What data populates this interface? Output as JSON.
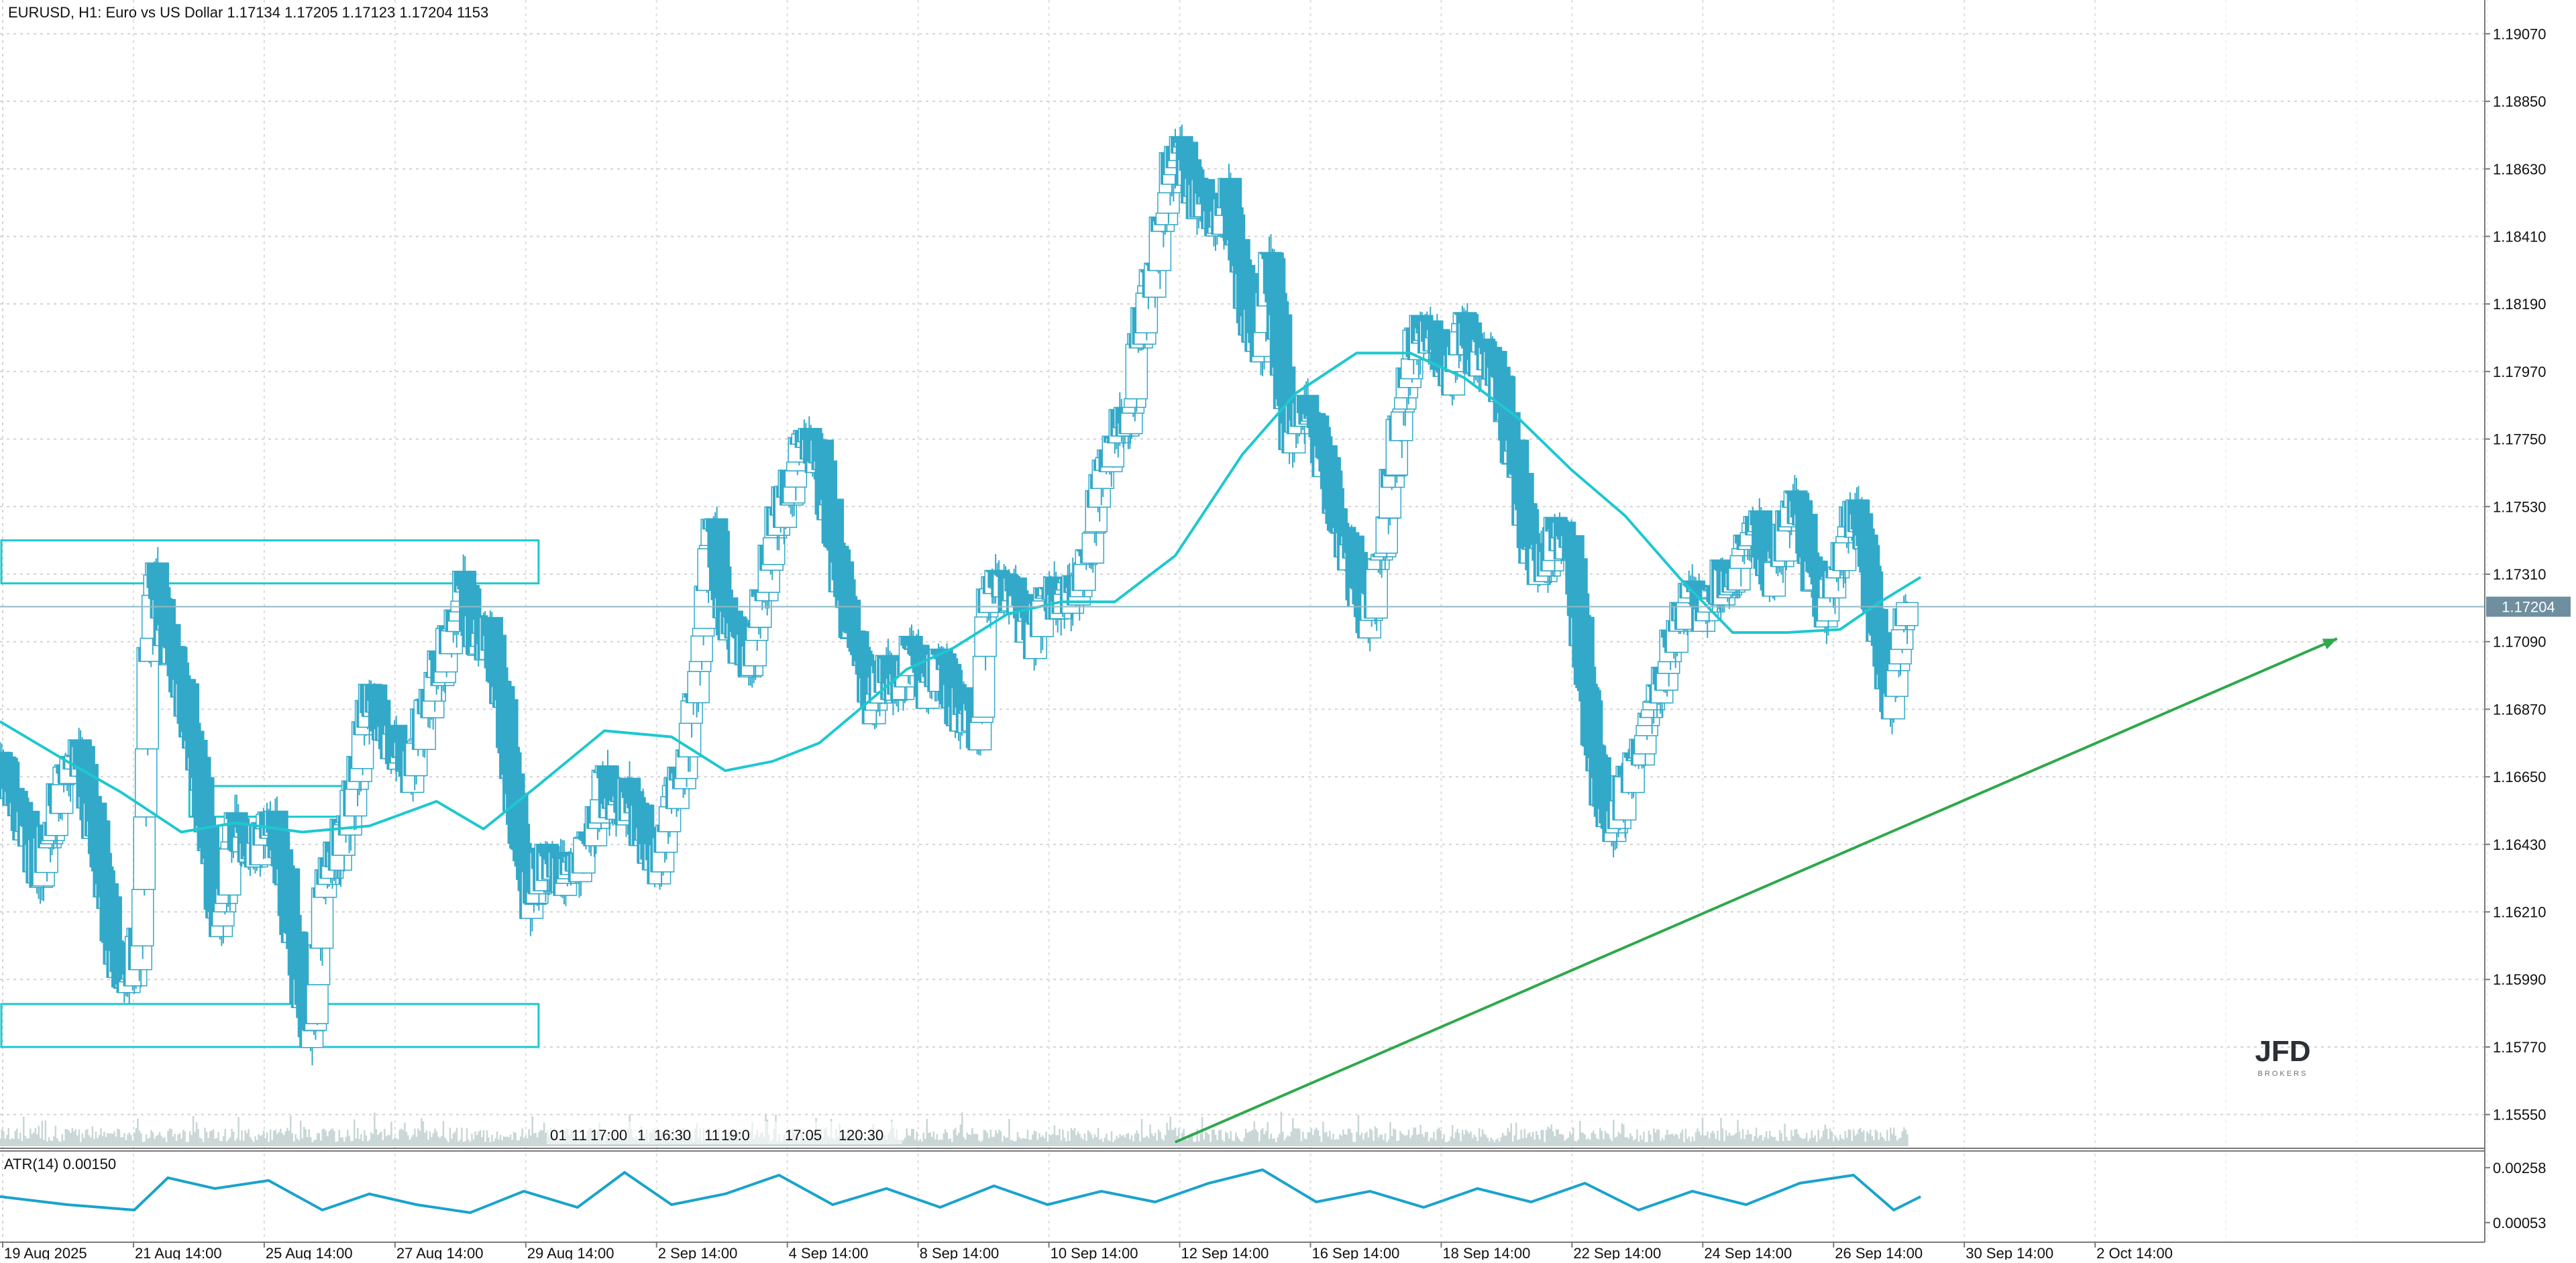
{
  "header": {
    "symbol_line": "EURUSD, H1:  Euro vs US Dollar  1.17134 1.17205 1.17123 1.17204  1153"
  },
  "price_panel": {
    "y_ticks": [
      "1.19070",
      "1.18850",
      "1.18630",
      "1.18410",
      "1.18190",
      "1.17970",
      "1.17750",
      "1.17530",
      "1.17310",
      "1.17090",
      "1.16870",
      "1.16650",
      "1.16430",
      "1.16210",
      "1.15990",
      "1.15770",
      "1.15550"
    ],
    "current_price_label": "1.17204",
    "watermark_main": "JFD",
    "watermark_sub": "BROKERS"
  },
  "atr_panel": {
    "label": "ATR(14) 0.00150",
    "y_ticks": [
      "0.00258",
      "0.00053"
    ]
  },
  "x_axis": {
    "labels": [
      "19 Aug 2025",
      "21 Aug 14:00",
      "25 Aug 14:00",
      "27 Aug 14:00",
      "29 Aug 14:00",
      "2 Sep 14:00",
      "4 Sep 14:00",
      "8 Sep 14:00",
      "10 Sep 14:00",
      "12 Sep 14:00",
      "16 Sep 14:00",
      "18 Sep 14:00",
      "22 Sep 14:00",
      "24 Sep 14:00",
      "26 Sep 14:00",
      "30 Sep 14:00",
      "2 Oct 14:00"
    ]
  },
  "overlapping_time_labels": [
    "01",
    "11",
    "17:00",
    "1",
    "16:30",
    "11",
    "19:0",
    "17:05",
    "1",
    "20:30"
  ],
  "colors": {
    "candle": "#33a9c9",
    "moving_average": "#1ec8cf",
    "zone_border": "#1ec8cf",
    "trendline": "#2ea84c",
    "atr_line": "#1aa3cc",
    "volume": "#c9d6d6",
    "grid": "#d3d3d3",
    "current_price_bg": "#6f8ea0"
  },
  "chart_data": {
    "type": "candlestick",
    "symbol": "EURUSD",
    "timeframe": "H1",
    "ohlc_last": {
      "open": 1.17134,
      "high": 1.17205,
      "low": 1.17123,
      "close": 1.17204
    },
    "last_volume": 1153,
    "ylim": [
      1.1544,
      1.1918
    ],
    "close_path": [
      {
        "t": 0,
        "p": 1.1673
      },
      {
        "t": 3,
        "p": 1.1655
      },
      {
        "t": 6,
        "p": 1.1635
      },
      {
        "t": 9,
        "p": 1.166
      },
      {
        "t": 12,
        "p": 1.167
      },
      {
        "t": 15,
        "p": 1.164
      },
      {
        "t": 17,
        "p": 1.161
      },
      {
        "t": 19,
        "p": 1.1595
      },
      {
        "t": 21,
        "p": 1.1612
      },
      {
        "t": 22,
        "p": 1.17
      },
      {
        "t": 23,
        "p": 1.1733
      },
      {
        "t": 25,
        "p": 1.171
      },
      {
        "t": 27,
        "p": 1.1695
      },
      {
        "t": 29,
        "p": 1.168
      },
      {
        "t": 31,
        "p": 1.164
      },
      {
        "t": 33,
        "p": 1.1615
      },
      {
        "t": 35,
        "p": 1.165
      },
      {
        "t": 38,
        "p": 1.164
      },
      {
        "t": 41,
        "p": 1.165
      },
      {
        "t": 43,
        "p": 1.1625
      },
      {
        "t": 45,
        "p": 1.1595
      },
      {
        "t": 46,
        "p": 1.158
      },
      {
        "t": 47,
        "p": 1.1585
      },
      {
        "t": 48,
        "p": 1.1625
      },
      {
        "t": 50,
        "p": 1.164
      },
      {
        "t": 52,
        "p": 1.165
      },
      {
        "t": 55,
        "p": 1.169
      },
      {
        "t": 58,
        "p": 1.168
      },
      {
        "t": 61,
        "p": 1.1665
      },
      {
        "t": 64,
        "p": 1.169
      },
      {
        "t": 67,
        "p": 1.171
      },
      {
        "t": 69,
        "p": 1.1728
      },
      {
        "t": 71,
        "p": 1.1708
      },
      {
        "t": 73,
        "p": 1.171
      },
      {
        "t": 75,
        "p": 1.169
      },
      {
        "t": 77,
        "p": 1.165
      },
      {
        "t": 79,
        "p": 1.1625
      },
      {
        "t": 82,
        "p": 1.164
      },
      {
        "t": 85,
        "p": 1.163
      },
      {
        "t": 88,
        "p": 1.1645
      },
      {
        "t": 90,
        "p": 1.1665
      },
      {
        "t": 92,
        "p": 1.165
      },
      {
        "t": 94,
        "p": 1.166
      },
      {
        "t": 96,
        "p": 1.1645
      },
      {
        "t": 98,
        "p": 1.1635
      },
      {
        "t": 100,
        "p": 1.1655
      },
      {
        "t": 102,
        "p": 1.167
      },
      {
        "t": 104,
        "p": 1.17
      },
      {
        "t": 106,
        "p": 1.175
      },
      {
        "t": 108,
        "p": 1.172
      },
      {
        "t": 110,
        "p": 1.171
      },
      {
        "t": 112,
        "p": 1.17
      },
      {
        "t": 114,
        "p": 1.173
      },
      {
        "t": 116,
        "p": 1.175
      },
      {
        "t": 118,
        "p": 1.176
      },
      {
        "t": 120,
        "p": 1.1775
      },
      {
        "t": 122,
        "p": 1.177
      },
      {
        "t": 124,
        "p": 1.1745
      },
      {
        "t": 126,
        "p": 1.172
      },
      {
        "t": 128,
        "p": 1.1705
      },
      {
        "t": 130,
        "p": 1.169
      },
      {
        "t": 132,
        "p": 1.17
      },
      {
        "t": 134,
        "p": 1.1693
      },
      {
        "t": 136,
        "p": 1.171
      },
      {
        "t": 138,
        "p": 1.1695
      },
      {
        "t": 140,
        "p": 1.17
      },
      {
        "t": 142,
        "p": 1.169
      },
      {
        "t": 144,
        "p": 1.1685
      },
      {
        "t": 146,
        "p": 1.168
      },
      {
        "t": 147,
        "p": 1.172
      },
      {
        "t": 149,
        "p": 1.173
      },
      {
        "t": 152,
        "p": 1.172
      },
      {
        "t": 154,
        "p": 1.171
      },
      {
        "t": 156,
        "p": 1.1725
      },
      {
        "t": 158,
        "p": 1.172
      },
      {
        "t": 160,
        "p": 1.1725
      },
      {
        "t": 162,
        "p": 1.1735
      },
      {
        "t": 164,
        "p": 1.176
      },
      {
        "t": 166,
        "p": 1.1775
      },
      {
        "t": 168,
        "p": 1.178
      },
      {
        "t": 170,
        "p": 1.181
      },
      {
        "t": 172,
        "p": 1.183
      },
      {
        "t": 174,
        "p": 1.186
      },
      {
        "t": 176,
        "p": 1.187
      },
      {
        "t": 178,
        "p": 1.1855
      },
      {
        "t": 180,
        "p": 1.185
      },
      {
        "t": 182,
        "p": 1.1845
      },
      {
        "t": 183,
        "p": 1.186
      },
      {
        "t": 184,
        "p": 1.184
      },
      {
        "t": 186,
        "p": 1.1815
      },
      {
        "t": 188,
        "p": 1.18
      },
      {
        "t": 189,
        "p": 1.1835
      },
      {
        "t": 190,
        "p": 1.182
      },
      {
        "t": 192,
        "p": 1.1775
      },
      {
        "t": 194,
        "p": 1.1785
      },
      {
        "t": 196,
        "p": 1.178
      },
      {
        "t": 198,
        "p": 1.176
      },
      {
        "t": 200,
        "p": 1.1745
      },
      {
        "t": 202,
        "p": 1.173
      },
      {
        "t": 204,
        "p": 1.1715
      },
      {
        "t": 206,
        "p": 1.174
      },
      {
        "t": 208,
        "p": 1.1775
      },
      {
        "t": 210,
        "p": 1.18
      },
      {
        "t": 212,
        "p": 1.181
      },
      {
        "t": 214,
        "p": 1.1805
      },
      {
        "t": 216,
        "p": 1.1795
      },
      {
        "t": 218,
        "p": 1.181
      },
      {
        "t": 220,
        "p": 1.18
      },
      {
        "t": 222,
        "p": 1.1805
      },
      {
        "t": 224,
        "p": 1.1785
      },
      {
        "t": 226,
        "p": 1.1765
      },
      {
        "t": 228,
        "p": 1.1735
      },
      {
        "t": 230,
        "p": 1.1735
      },
      {
        "t": 232,
        "p": 1.1745
      },
      {
        "t": 234,
        "p": 1.174
      },
      {
        "t": 236,
        "p": 1.17
      },
      {
        "t": 238,
        "p": 1.1665
      },
      {
        "t": 240,
        "p": 1.165
      },
      {
        "t": 242,
        "p": 1.166
      },
      {
        "t": 244,
        "p": 1.167
      },
      {
        "t": 246,
        "p": 1.1685
      },
      {
        "t": 248,
        "p": 1.17
      },
      {
        "t": 250,
        "p": 1.1715
      },
      {
        "t": 252,
        "p": 1.1725
      },
      {
        "t": 254,
        "p": 1.1718
      },
      {
        "t": 256,
        "p": 1.1728
      },
      {
        "t": 258,
        "p": 1.173
      },
      {
        "t": 260,
        "p": 1.174
      },
      {
        "t": 262,
        "p": 1.1745
      },
      {
        "t": 264,
        "p": 1.173
      },
      {
        "t": 266,
        "p": 1.1745
      },
      {
        "t": 268,
        "p": 1.1755
      },
      {
        "t": 270,
        "p": 1.173
      },
      {
        "t": 272,
        "p": 1.172
      },
      {
        "t": 274,
        "p": 1.1735
      },
      {
        "t": 276,
        "p": 1.175
      },
      {
        "t": 278,
        "p": 1.174
      },
      {
        "t": 280,
        "p": 1.1705
      },
      {
        "t": 282,
        "p": 1.169
      },
      {
        "t": 284,
        "p": 1.172
      }
    ],
    "series": [
      {
        "type": "moving_average",
        "values": [
          {
            "t": 0,
            "p": 1.1683
          },
          {
            "t": 10,
            "p": 1.167
          },
          {
            "t": 18,
            "p": 1.166
          },
          {
            "t": 27,
            "p": 1.1647
          },
          {
            "t": 35,
            "p": 1.165
          },
          {
            "t": 45,
            "p": 1.1647
          },
          {
            "t": 55,
            "p": 1.1649
          },
          {
            "t": 65,
            "p": 1.1657
          },
          {
            "t": 72,
            "p": 1.1648
          },
          {
            "t": 80,
            "p": 1.1662
          },
          {
            "t": 90,
            "p": 1.168
          },
          {
            "t": 100,
            "p": 1.1678
          },
          {
            "t": 108,
            "p": 1.1667
          },
          {
            "t": 115,
            "p": 1.167
          },
          {
            "t": 122,
            "p": 1.1676
          },
          {
            "t": 128,
            "p": 1.1687
          },
          {
            "t": 135,
            "p": 1.17
          },
          {
            "t": 142,
            "p": 1.1707
          },
          {
            "t": 150,
            "p": 1.1718
          },
          {
            "t": 158,
            "p": 1.1722
          },
          {
            "t": 166,
            "p": 1.1722
          },
          {
            "t": 175,
            "p": 1.1737
          },
          {
            "t": 185,
            "p": 1.177
          },
          {
            "t": 193,
            "p": 1.179
          },
          {
            "t": 202,
            "p": 1.1803
          },
          {
            "t": 210,
            "p": 1.1803
          },
          {
            "t": 218,
            "p": 1.1795
          },
          {
            "t": 226,
            "p": 1.1782
          },
          {
            "t": 234,
            "p": 1.1765
          },
          {
            "t": 242,
            "p": 1.175
          },
          {
            "t": 250,
            "p": 1.173
          },
          {
            "t": 258,
            "p": 1.1712
          },
          {
            "t": 266,
            "p": 1.1712
          },
          {
            "t": 274,
            "p": 1.1713
          },
          {
            "t": 280,
            "p": 1.1722
          },
          {
            "t": 286,
            "p": 1.173
          }
        ]
      },
      {
        "type": "atr",
        "name": "ATR(14)",
        "values": [
          {
            "t": 0,
            "p": 0.0015
          },
          {
            "t": 10,
            "p": 0.0012
          },
          {
            "t": 20,
            "p": 0.001
          },
          {
            "t": 25,
            "p": 0.0022
          },
          {
            "t": 32,
            "p": 0.0018
          },
          {
            "t": 40,
            "p": 0.0021
          },
          {
            "t": 48,
            "p": 0.001
          },
          {
            "t": 55,
            "p": 0.0016
          },
          {
            "t": 62,
            "p": 0.0012
          },
          {
            "t": 70,
            "p": 0.0009
          },
          {
            "t": 78,
            "p": 0.0017
          },
          {
            "t": 86,
            "p": 0.0011
          },
          {
            "t": 93,
            "p": 0.0024
          },
          {
            "t": 100,
            "p": 0.0012
          },
          {
            "t": 108,
            "p": 0.0016
          },
          {
            "t": 116,
            "p": 0.0023
          },
          {
            "t": 124,
            "p": 0.0012
          },
          {
            "t": 132,
            "p": 0.0018
          },
          {
            "t": 140,
            "p": 0.0011
          },
          {
            "t": 148,
            "p": 0.0019
          },
          {
            "t": 156,
            "p": 0.0012
          },
          {
            "t": 164,
            "p": 0.0017
          },
          {
            "t": 172,
            "p": 0.0013
          },
          {
            "t": 180,
            "p": 0.002
          },
          {
            "t": 188,
            "p": 0.0025
          },
          {
            "t": 196,
            "p": 0.0013
          },
          {
            "t": 204,
            "p": 0.0017
          },
          {
            "t": 212,
            "p": 0.0011
          },
          {
            "t": 220,
            "p": 0.0018
          },
          {
            "t": 228,
            "p": 0.0013
          },
          {
            "t": 236,
            "p": 0.002
          },
          {
            "t": 244,
            "p": 0.001
          },
          {
            "t": 252,
            "p": 0.0017
          },
          {
            "t": 260,
            "p": 0.0012
          },
          {
            "t": 268,
            "p": 0.002
          },
          {
            "t": 276,
            "p": 0.0023
          },
          {
            "t": 282,
            "p": 0.001
          },
          {
            "t": 286,
            "p": 0.0015
          }
        ]
      }
    ],
    "atr_ylim": [
      0.0,
      0.003
    ],
    "zones": [
      {
        "from_t": 0,
        "to_t": 80,
        "low": 1.1728,
        "high": 1.1742
      },
      {
        "from_t": 28,
        "to_t": 51,
        "low": 1.1652,
        "high": 1.1662
      },
      {
        "from_t": 0,
        "to_t": 80,
        "low": 1.1577,
        "high": 1.1591
      }
    ],
    "current_price": 1.17204,
    "trendline": {
      "from": {
        "t": 175,
        "p": 1.1546
      },
      "to": {
        "t": 348,
        "p": 1.171
      }
    },
    "x_span": [
      0,
      370
    ]
  }
}
